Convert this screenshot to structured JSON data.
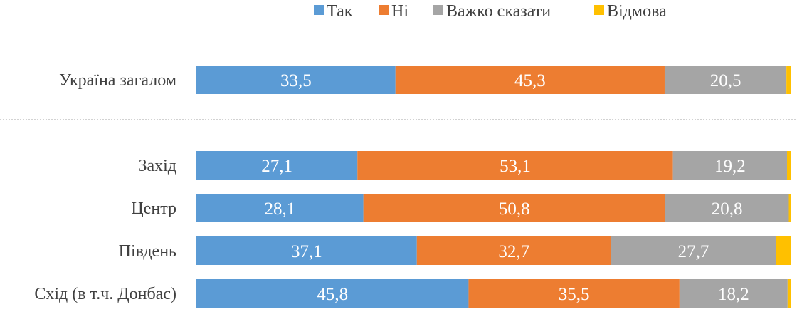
{
  "chart_data": {
    "type": "bar",
    "orientation": "horizontal",
    "stacked": true,
    "legend_position": "top",
    "categories": [
      "Україна загалом",
      "Захід",
      "Центр",
      "Південь",
      "Схід (в т.ч. Донбас)"
    ],
    "series": [
      {
        "name": "Так",
        "color": "#5B9BD5",
        "values": [
          33.5,
          27.1,
          28.1,
          37.1,
          45.8
        ],
        "labels": [
          "33,5",
          "27,1",
          "28,1",
          "37,1",
          "45,8"
        ]
      },
      {
        "name": "Ні",
        "color": "#ED7D31",
        "values": [
          45.3,
          53.1,
          50.8,
          32.7,
          35.5
        ],
        "labels": [
          "45,3",
          "53,1",
          "50,8",
          "32,7",
          "35,5"
        ]
      },
      {
        "name": "Важко сказати",
        "color": "#A5A5A5",
        "values": [
          20.5,
          19.2,
          20.8,
          27.7,
          18.2
        ],
        "labels": [
          "20,5",
          "19,2",
          "20,8",
          "27,7",
          "18,2"
        ]
      },
      {
        "name": "Відмова",
        "color": "#FFC000",
        "values": [
          0.7,
          0.6,
          0.3,
          2.5,
          0.5
        ],
        "labels": [
          "",
          "",
          "",
          "",
          ""
        ]
      }
    ],
    "xlim": [
      0,
      100
    ],
    "separator_after_category": 0
  }
}
